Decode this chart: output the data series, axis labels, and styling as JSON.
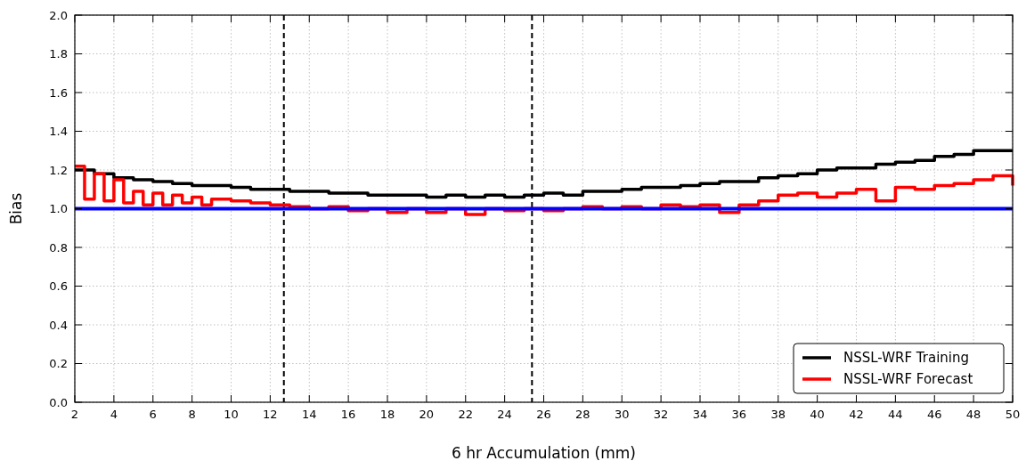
{
  "chart_data": {
    "type": "step",
    "xlabel": "6 hr Accumulation (mm)",
    "ylabel": "Bias",
    "xlim": [
      2,
      50
    ],
    "xticks": [
      2,
      4,
      6,
      8,
      10,
      12,
      14,
      16,
      18,
      20,
      22,
      24,
      26,
      28,
      30,
      32,
      34,
      36,
      38,
      40,
      42,
      44,
      46,
      48,
      50
    ],
    "ylim": [
      0,
      2
    ],
    "yticks": [
      {
        "value": 0,
        "label": "0.0"
      },
      0.2,
      0.4,
      0.6,
      0.8,
      {
        "value": 1,
        "label": "1.0"
      },
      1.2,
      1.4,
      1.6,
      1.8,
      {
        "value": 2,
        "label": "2.0"
      }
    ],
    "grid": true,
    "legend": "bottom right",
    "line_style": "solid",
    "marker": "none",
    "ref_lines": [
      {
        "axis": "y",
        "value": 1.0,
        "color": "#0000ff",
        "line_style": "solid"
      },
      {
        "axis": "x",
        "value": 12.7,
        "color": "#000000",
        "line_style": "dashed"
      },
      {
        "axis": "x",
        "value": 25.4,
        "color": "#000000",
        "line_style": "dashed"
      }
    ],
    "series": [
      {
        "name": "NSSL-WRF Training",
        "color": "#000000",
        "x": [
          2,
          3,
          4,
          5,
          6,
          7,
          8,
          9,
          10,
          11,
          12,
          13,
          14,
          15,
          16,
          17,
          18,
          19,
          20,
          21,
          22,
          23,
          24,
          25,
          26,
          27,
          28,
          29,
          30,
          31,
          32,
          33,
          34,
          35,
          36,
          37,
          38,
          39,
          40,
          41,
          42,
          43,
          44,
          45,
          46,
          47,
          48,
          49,
          50
        ],
        "values": [
          1.2,
          1.18,
          1.16,
          1.15,
          1.14,
          1.13,
          1.12,
          1.12,
          1.11,
          1.1,
          1.1,
          1.09,
          1.09,
          1.08,
          1.08,
          1.07,
          1.07,
          1.07,
          1.06,
          1.07,
          1.06,
          1.07,
          1.06,
          1.07,
          1.08,
          1.07,
          1.09,
          1.09,
          1.1,
          1.11,
          1.11,
          1.12,
          1.13,
          1.14,
          1.14,
          1.16,
          1.17,
          1.18,
          1.2,
          1.21,
          1.21,
          1.23,
          1.24,
          1.25,
          1.27,
          1.28,
          1.3,
          1.3,
          1.3
        ]
      },
      {
        "name": "NSSL-WRF Forecast",
        "color": "#ff0000",
        "x": [
          2,
          2.5,
          3,
          3.5,
          4,
          4.5,
          5,
          5.5,
          6,
          6.5,
          7,
          7.5,
          8,
          8.5,
          9,
          10,
          11,
          12,
          13,
          14,
          15,
          16,
          17,
          18,
          19,
          20,
          21,
          22,
          23,
          24,
          25,
          26,
          27,
          28,
          29,
          30,
          31,
          32,
          33,
          34,
          35,
          36,
          37,
          38,
          39,
          40,
          41,
          42,
          43,
          44,
          45,
          46,
          47,
          48,
          49,
          50
        ],
        "values": [
          1.22,
          1.05,
          1.18,
          1.04,
          1.15,
          1.03,
          1.09,
          1.02,
          1.08,
          1.02,
          1.07,
          1.03,
          1.06,
          1.02,
          1.05,
          1.04,
          1.03,
          1.02,
          1.01,
          1.0,
          1.01,
          0.99,
          1.0,
          0.98,
          1.0,
          0.98,
          1.0,
          0.97,
          1.0,
          0.99,
          1.0,
          0.99,
          1.0,
          1.01,
          1.0,
          1.01,
          1.0,
          1.02,
          1.01,
          1.02,
          0.98,
          1.02,
          1.04,
          1.07,
          1.08,
          1.06,
          1.08,
          1.1,
          1.04,
          1.11,
          1.1,
          1.12,
          1.13,
          1.15,
          1.17,
          1.12
        ]
      }
    ]
  }
}
